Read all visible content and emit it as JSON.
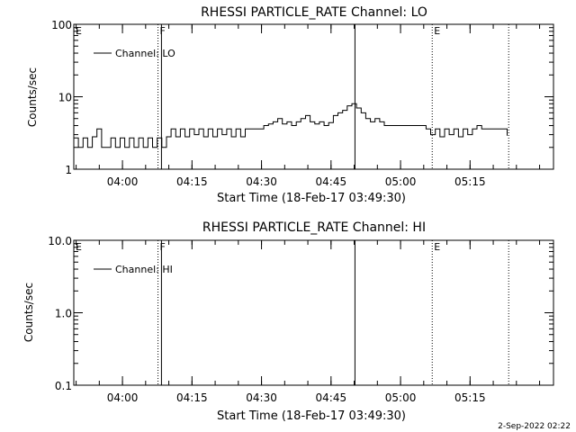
{
  "footer": {
    "date_stamp": "2-Sep-2022 02:22"
  },
  "chart_data": [
    {
      "type": "line",
      "title": "RHESSI PARTICLE_RATE Channel: LO",
      "xlabel": "Start Time (18-Feb-17 03:49:30)",
      "ylabel": "Counts/sec",
      "y_scale": "log",
      "ylim": [
        1,
        100
      ],
      "y_ticks": [
        "1",
        "10",
        "100"
      ],
      "xlim": [
        "03:49:30",
        "05:33:00"
      ],
      "x_ticks": [
        "04:00",
        "04:15",
        "04:30",
        "04:45",
        "05:00",
        "05:15"
      ],
      "legend": {
        "placement": "top-left",
        "entries": [
          "Channel: LO"
        ]
      },
      "markers": [
        {
          "time": "04:07:40",
          "style": "dotted",
          "label": "F"
        },
        {
          "time": "04:08:25",
          "style": "solid",
          "label": ""
        },
        {
          "time": "04:50:10",
          "style": "solid",
          "label": ""
        },
        {
          "time": "05:06:50",
          "style": "dotted",
          "label": "E"
        },
        {
          "time": "05:23:20",
          "style": "dotted",
          "label": ""
        }
      ],
      "corner_label": "E",
      "series": [
        {
          "name": "Channel: LO",
          "x": [
            "03:49:30",
            "03:50:30",
            "03:51:30",
            "03:52:30",
            "03:53:30",
            "03:54:30",
            "03:55:30",
            "03:56:30",
            "03:57:30",
            "03:58:30",
            "03:59:30",
            "04:00:30",
            "04:01:30",
            "04:02:30",
            "04:03:30",
            "04:04:30",
            "04:05:30",
            "04:06:30",
            "04:07:30",
            "04:08:30",
            "04:09:30",
            "04:10:30",
            "04:11:30",
            "04:12:30",
            "04:13:30",
            "04:14:30",
            "04:15:30",
            "04:16:30",
            "04:17:30",
            "04:18:30",
            "04:19:30",
            "04:20:30",
            "04:21:30",
            "04:22:30",
            "04:23:30",
            "04:24:30",
            "04:25:30",
            "04:26:30",
            "04:27:30",
            "04:28:30",
            "04:29:30",
            "04:30:30",
            "04:31:30",
            "04:32:30",
            "04:33:30",
            "04:34:30",
            "04:35:30",
            "04:36:30",
            "04:37:30",
            "04:38:30",
            "04:39:30",
            "04:40:30",
            "04:41:30",
            "04:42:30",
            "04:43:30",
            "04:44:30",
            "04:45:30",
            "04:46:30",
            "04:47:30",
            "04:48:30",
            "04:49:30",
            "04:50:30",
            "04:51:30",
            "04:52:30",
            "04:53:30",
            "04:54:30",
            "04:55:30",
            "04:56:30",
            "04:57:30",
            "04:58:30",
            "04:59:30",
            "05:00:30",
            "05:01:30",
            "05:02:30",
            "05:03:30",
            "05:04:30",
            "05:05:30",
            "05:06:30",
            "05:07:30",
            "05:08:30",
            "05:09:30",
            "05:10:30",
            "05:11:30",
            "05:12:30",
            "05:13:30",
            "05:14:30",
            "05:15:30",
            "05:16:30",
            "05:17:30",
            "05:18:30",
            "05:19:30",
            "05:20:30",
            "05:21:30",
            "05:22:30",
            "05:23:00"
          ],
          "y": [
            2.7,
            2.0,
            2.7,
            2.0,
            2.8,
            3.6,
            2.0,
            2.0,
            2.7,
            2.0,
            2.7,
            2.0,
            2.7,
            2.0,
            2.7,
            2.0,
            2.7,
            2.0,
            2.7,
            2.0,
            2.8,
            3.6,
            2.8,
            3.6,
            2.8,
            3.6,
            3.0,
            3.6,
            2.8,
            3.6,
            2.8,
            3.6,
            3.0,
            3.6,
            2.8,
            3.6,
            2.8,
            3.6,
            3.6,
            3.6,
            3.6,
            4.0,
            4.2,
            4.5,
            5.0,
            4.2,
            4.5,
            4.0,
            4.5,
            5.0,
            5.5,
            4.5,
            4.2,
            4.5,
            4.0,
            4.4,
            5.5,
            6.0,
            6.5,
            7.5,
            8.0,
            7.0,
            6.0,
            5.0,
            4.5,
            5.0,
            4.5,
            4.0,
            4.0,
            4.0,
            4.0,
            4.0,
            4.0,
            4.0,
            4.0,
            4.0,
            3.6,
            3.0,
            3.6,
            2.8,
            3.6,
            3.0,
            3.6,
            2.8,
            3.6,
            3.0,
            3.6,
            4.0,
            3.6,
            3.6,
            3.6,
            3.6,
            3.6,
            3.6,
            2.9
          ]
        }
      ]
    },
    {
      "type": "line",
      "title": "RHESSI PARTICLE_RATE Channel: HI",
      "xlabel": "Start Time (18-Feb-17 03:49:30)",
      "ylabel": "Counts/sec",
      "y_scale": "log",
      "ylim": [
        0.1,
        10
      ],
      "y_ticks": [
        "0.1",
        "1.0",
        "10.0"
      ],
      "xlim": [
        "03:49:30",
        "05:33:00"
      ],
      "x_ticks": [
        "04:00",
        "04:15",
        "04:30",
        "04:45",
        "05:00",
        "05:15"
      ],
      "legend": {
        "placement": "top-left",
        "entries": [
          "Channel: HI"
        ]
      },
      "markers": [
        {
          "time": "04:07:40",
          "style": "dotted",
          "label": "F"
        },
        {
          "time": "04:08:25",
          "style": "solid",
          "label": ""
        },
        {
          "time": "04:50:10",
          "style": "solid",
          "label": ""
        },
        {
          "time": "05:06:50",
          "style": "dotted",
          "label": "E"
        },
        {
          "time": "05:23:20",
          "style": "dotted",
          "label": ""
        }
      ],
      "corner_label": "E",
      "series": [
        {
          "name": "Channel: HI",
          "x": [],
          "y": []
        }
      ]
    }
  ]
}
